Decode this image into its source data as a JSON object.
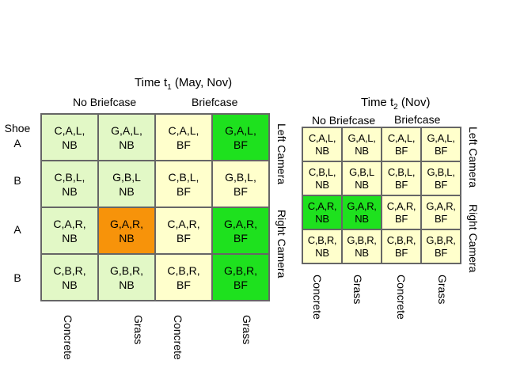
{
  "colors": {
    "light_green": "#e2f8c6",
    "light_yellow": "#ffffcc",
    "bright_green": "#1ee11e",
    "orange": "#f7930a",
    "border": "#666666"
  },
  "grid1": {
    "title_prefix": "Time t",
    "title_sub": "1",
    "title_suffix": " (May, Nov)",
    "no_briefcase": "No Briefcase",
    "briefcase": "Briefcase",
    "row_labels": [
      "Shoe\nA",
      "B",
      "A",
      "B"
    ],
    "camera_left": "Left Camera",
    "camera_right": "Right Camera",
    "surface_labels": [
      "Concrete",
      "Grass",
      "Concrete",
      "Grass"
    ],
    "cells": [
      [
        "C,A,L,\nNB",
        "G,A,L,\nNB",
        "C,A,L,\nBF",
        "G,A,L,\nBF"
      ],
      [
        "C,B,L,\nNB",
        "G,B,L\nNB",
        "C,B,L,\nBF",
        "G,B,L,\nBF"
      ],
      [
        "C,A,R,\nNB",
        "G,A,R,\nNB",
        "C,A,R,\nBF",
        "G,A,R,\nBF"
      ],
      [
        "C,B,R,\nNB",
        "G,B,R,\nNB",
        "C,B,R,\nBF",
        "G,B,R,\nBF"
      ]
    ]
  },
  "grid2": {
    "title_prefix": "Time t",
    "title_sub": "2",
    "title_suffix": " (Nov)",
    "no_briefcase": "No Briefcase",
    "briefcase": "Briefcase",
    "camera_left": "Left Camera",
    "camera_right": "Right Camera",
    "surface_labels": [
      "Concrete",
      "Grass",
      "Concrete",
      "Grass"
    ],
    "cells": [
      [
        "C,A,L,\nNB",
        "G,A,L,\nNB",
        "C,A,L,\nBF",
        "G,A,L,\nBF"
      ],
      [
        "C,B,L,\nNB",
        "G,B,L\nNB",
        "C,B,L,\nBF",
        "G,B,L,\nBF"
      ],
      [
        "C,A,R,\nNB",
        "G,A,R,\nNB",
        "C,A,R,\nBF",
        "G,A,R,\nBF"
      ],
      [
        "C,B,R,\nNB",
        "G,B,R,\nNB",
        "C,B,R,\nBF",
        "G,B,R,\nBF"
      ]
    ]
  }
}
